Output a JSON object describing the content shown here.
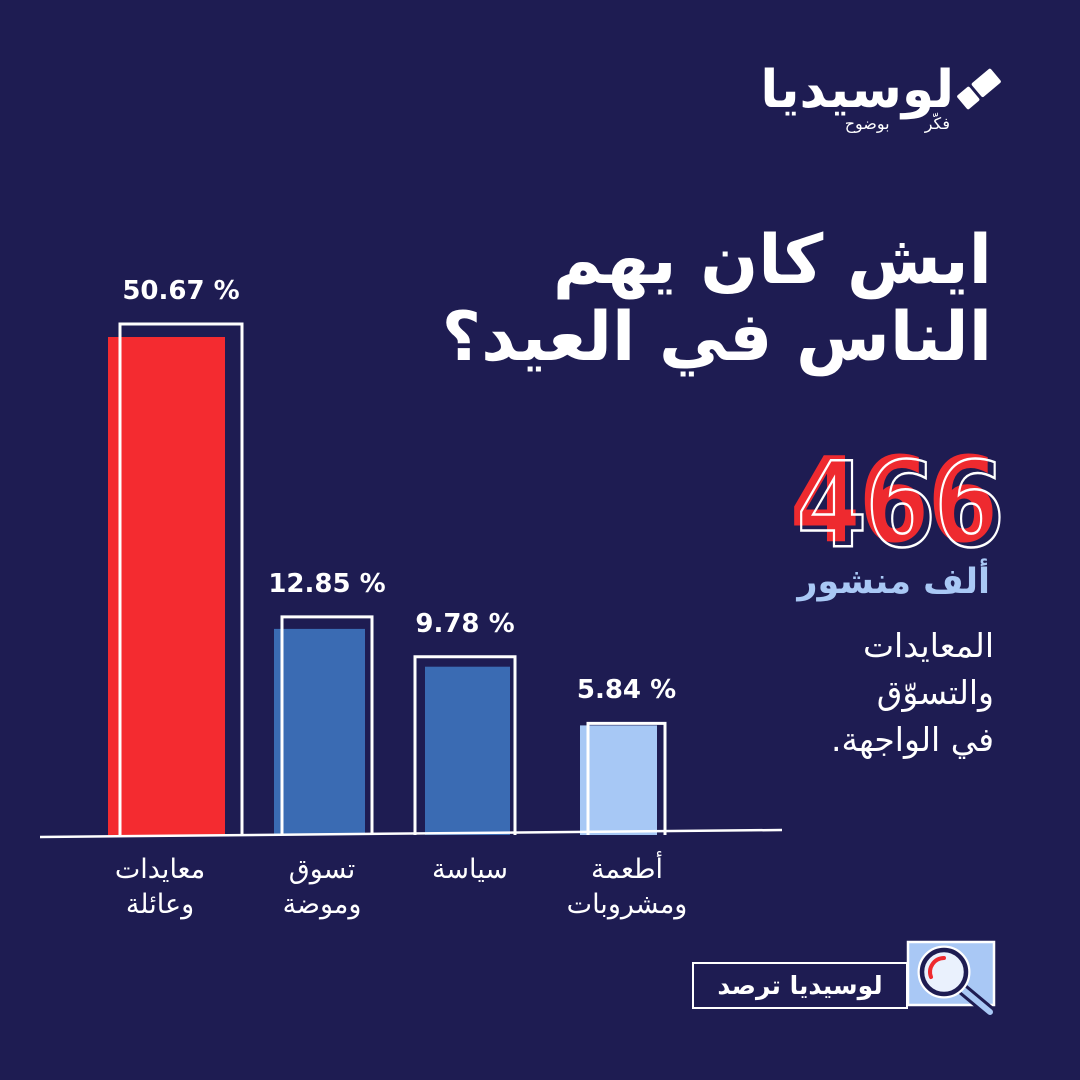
{
  "brand": {
    "logo_icon": "pencil-eraser-icon",
    "name": "لوسيديا",
    "tagline": "فكّر بوضوح"
  },
  "headline": {
    "line1": "ايش كان يهم",
    "line2": "الناس في العيد؟"
  },
  "stats": {
    "count": "466",
    "count_unit": "ألف منشور",
    "summary_lines": [
      "المعايدات",
      "والتسوّق",
      "في الواجهة."
    ]
  },
  "footer_badge": {
    "label": "لوسيديا ترصد",
    "icon": "magnifier-icon"
  },
  "colors": {
    "background": "#1e1c52",
    "accent_red": "#ee2a2f",
    "light_blue": "#a9c8f5",
    "text": "#ffffff"
  },
  "chart_data": {
    "type": "bar",
    "categories": [
      "معايدات وعائلة",
      "تسوق وموضة",
      "سياسة",
      "أطعمة ومشروبات"
    ],
    "values": [
      50.67,
      12.85,
      9.78,
      5.84
    ],
    "data_labels": [
      "50.67 %",
      "12.85 %",
      "9.78 %",
      "5.84 %"
    ],
    "colors": [
      "#f42b30",
      "#3a6bb3",
      "#3a6bb3",
      "#a7c8f5"
    ],
    "grid": false
  }
}
